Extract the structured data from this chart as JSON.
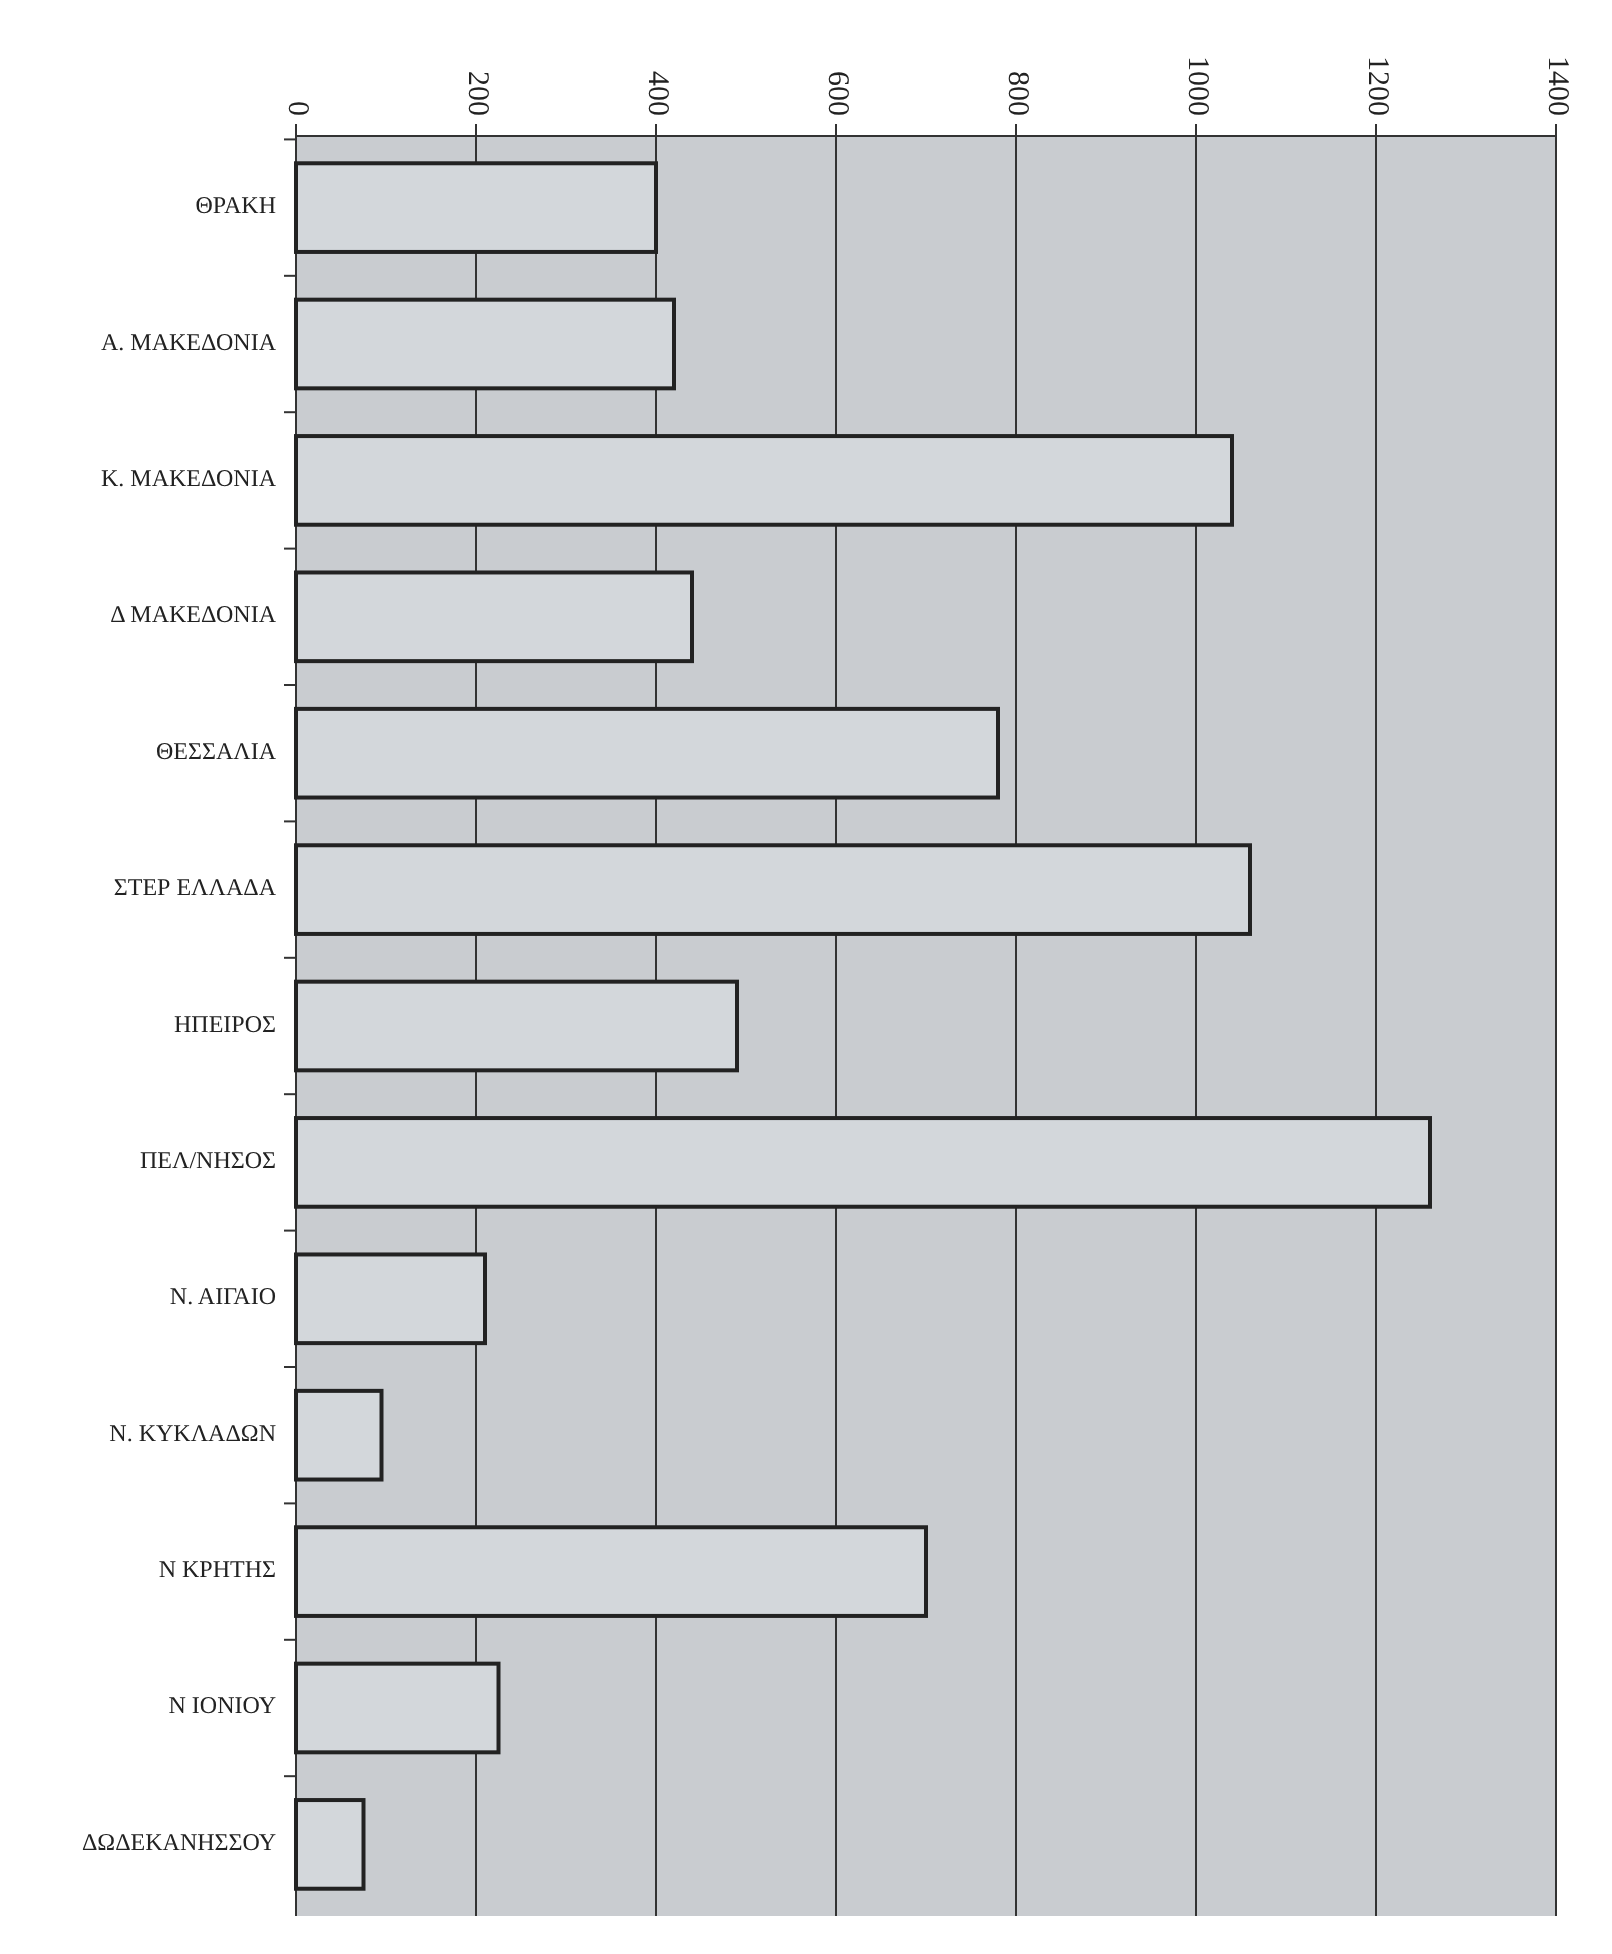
{
  "chart_data": {
    "type": "bar",
    "orientation": "horizontal",
    "categories": [
      "ΘΡΑΚΗ",
      "Α. ΜΑΚΕΔΟΝΙΑ",
      "Κ. ΜΑΚΕΔΟΝΙΑ",
      "Δ ΜΑΚΕΔΟΝΙΑ",
      "ΘΕΣΣΑΛΙΑ",
      "ΣΤΕΡ ΕΛΛΑΔΑ",
      "ΗΠΕΙΡΟΣ",
      "ΠΕΛ/ΝΗΣΟΣ",
      "Ν. ΑΙΓΑΙΟ",
      "Ν. ΚΥΚΛΑΔΩΝ",
      "Ν ΚΡΗΤΗΣ",
      "Ν ΙΟΝΙΟΥ",
      "ΔΩΔΕΚΑΝΗΣΣΟΥ"
    ],
    "values": [
      400,
      420,
      1040,
      440,
      780,
      1060,
      490,
      1260,
      210,
      95,
      700,
      225,
      75
    ],
    "color": "#d3d7db",
    "xlim": [
      0,
      1400
    ],
    "xticks": [
      0,
      200,
      400,
      600,
      800,
      1000,
      1200,
      1400
    ],
    "grid": "x"
  }
}
